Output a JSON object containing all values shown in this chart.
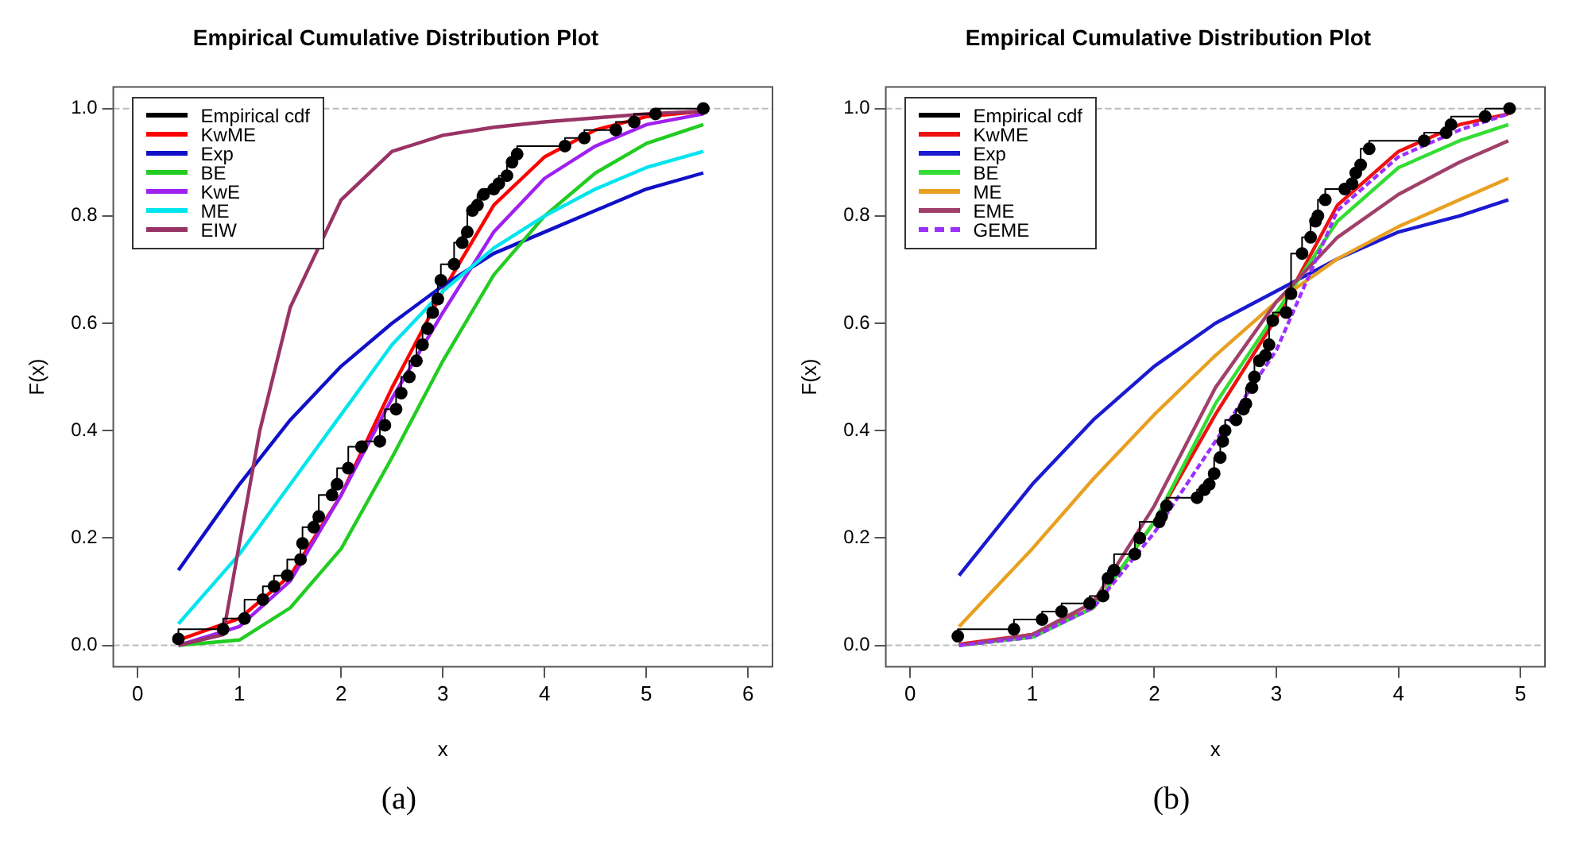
{
  "chart_data": [
    {
      "type": "line",
      "title": "Empirical Cumulative Distribution Plot",
      "xlabel": "x",
      "ylabel": "F(x)",
      "xlim": [
        -0.24,
        6.24
      ],
      "xticks": [
        0,
        1,
        2,
        3,
        4,
        5,
        6
      ],
      "ylim": [
        -0.04,
        1.04
      ],
      "yticks": [
        {
          "value": 0,
          "label": "0.0"
        },
        {
          "value": 0.2,
          "label": "0.2"
        },
        {
          "value": 0.4,
          "label": "0.4"
        },
        {
          "value": 0.6,
          "label": "0.6"
        },
        {
          "value": 0.8,
          "label": "0.8"
        },
        {
          "value": 1,
          "label": "1.0"
        }
      ],
      "grid": false,
      "legend": "top left",
      "marker": "none",
      "annotations": [
        "(a)"
      ],
      "ref_lines": [
        {
          "axis": "y",
          "value": 0,
          "color": "#bbbbbb",
          "line_style": "dashed"
        },
        {
          "axis": "y",
          "value": 1,
          "color": "#bbbbbb",
          "line_style": "dashed"
        }
      ],
      "series": [
        {
          "name": "Empirical cdf",
          "type": "step",
          "marker": "circle",
          "color": "#000000",
          "x": [
            0.4,
            0.84,
            1.05,
            1.23,
            1.34,
            1.47,
            1.6,
            1.62,
            1.73,
            1.78,
            1.91,
            1.96,
            2.07,
            2.2,
            2.38,
            2.43,
            2.54,
            2.59,
            2.67,
            2.74,
            2.8,
            2.85,
            2.9,
            2.95,
            2.98,
            3.11,
            3.19,
            3.24,
            3.29,
            3.34,
            3.4,
            3.5,
            3.55,
            3.63,
            3.68,
            3.73,
            4.2,
            4.39,
            4.7,
            4.88,
            5.09,
            5.56
          ],
          "values": [
            0.012,
            0.03,
            0.05,
            0.085,
            0.11,
            0.13,
            0.16,
            0.19,
            0.22,
            0.24,
            0.28,
            0.3,
            0.33,
            0.37,
            0.38,
            0.41,
            0.44,
            0.47,
            0.5,
            0.53,
            0.56,
            0.59,
            0.62,
            0.645,
            0.68,
            0.71,
            0.75,
            0.77,
            0.81,
            0.82,
            0.84,
            0.85,
            0.86,
            0.875,
            0.9,
            0.915,
            0.93,
            0.945,
            0.96,
            0.975,
            0.99,
            1
          ]
        },
        {
          "name": "KwME",
          "color": "#ff0000",
          "x": [
            0.4,
            1,
            1.5,
            2,
            2.5,
            3,
            3.5,
            4,
            4.5,
            5,
            5.56
          ],
          "values": [
            0.01,
            0.05,
            0.13,
            0.28,
            0.48,
            0.66,
            0.82,
            0.91,
            0.96,
            0.985,
            0.995
          ]
        },
        {
          "name": "Exp",
          "color": "#1010c8",
          "x": [
            0.4,
            1,
            1.5,
            2,
            2.5,
            3,
            3.5,
            4,
            4.5,
            5,
            5.56
          ],
          "values": [
            0.14,
            0.3,
            0.42,
            0.52,
            0.6,
            0.67,
            0.73,
            0.77,
            0.81,
            0.85,
            0.88
          ]
        },
        {
          "name": "BE",
          "color": "#22cc22",
          "x": [
            0.4,
            1,
            1.5,
            2,
            2.5,
            3,
            3.5,
            4,
            4.5,
            5,
            5.56
          ],
          "values": [
            0,
            0.01,
            0.07,
            0.18,
            0.35,
            0.53,
            0.69,
            0.8,
            0.88,
            0.935,
            0.97
          ]
        },
        {
          "name": "KwE",
          "color": "#a020f0",
          "x": [
            0.4,
            1,
            1.5,
            2,
            2.5,
            3,
            3.5,
            4,
            4.5,
            5,
            5.56
          ],
          "values": [
            0,
            0.035,
            0.12,
            0.28,
            0.46,
            0.62,
            0.77,
            0.87,
            0.93,
            0.97,
            0.99
          ]
        },
        {
          "name": "ME",
          "color": "#00e5ee",
          "x": [
            0.4,
            1,
            1.5,
            2,
            2.5,
            3,
            3.5,
            4,
            4.5,
            5,
            5.56
          ],
          "values": [
            0.04,
            0.17,
            0.3,
            0.43,
            0.56,
            0.66,
            0.74,
            0.8,
            0.85,
            0.89,
            0.92
          ]
        },
        {
          "name": "EIW",
          "color": "#993366",
          "x": [
            0.4,
            0.84,
            1,
            1.2,
            1.5,
            2,
            2.5,
            3,
            3.5,
            4,
            5,
            5.56
          ],
          "values": [
            0,
            0.02,
            0.19,
            0.4,
            0.63,
            0.83,
            0.92,
            0.95,
            0.965,
            0.975,
            0.99,
            0.995
          ]
        }
      ]
    },
    {
      "type": "line",
      "title": "Empirical Cumulative Distribution Plot",
      "xlabel": "x",
      "ylabel": "F(x)",
      "xlim": [
        -0.2,
        5.2
      ],
      "xticks": [
        0,
        1,
        2,
        3,
        4,
        5
      ],
      "ylim": [
        -0.04,
        1.04
      ],
      "yticks": [
        {
          "value": 0,
          "label": "0.0"
        },
        {
          "value": 0.2,
          "label": "0.2"
        },
        {
          "value": 0.4,
          "label": "0.4"
        },
        {
          "value": 0.6,
          "label": "0.6"
        },
        {
          "value": 0.8,
          "label": "0.8"
        },
        {
          "value": 1,
          "label": "1.0"
        }
      ],
      "grid": false,
      "legend": "top left",
      "marker": "none",
      "annotations": [
        "(b)"
      ],
      "ref_lines": [
        {
          "axis": "y",
          "value": 0,
          "color": "#bbbbbb",
          "line_style": "dashed"
        },
        {
          "axis": "y",
          "value": 1,
          "color": "#bbbbbb",
          "line_style": "dashed"
        }
      ],
      "series": [
        {
          "name": "Empirical cdf",
          "type": "step",
          "marker": "circle",
          "color": "#000000",
          "x": [
            0.39,
            0.85,
            1.08,
            1.24,
            1.47,
            1.58,
            1.62,
            1.67,
            1.84,
            1.88,
            2.04,
            2.06,
            2.1,
            2.35,
            2.41,
            2.45,
            2.49,
            2.54,
            2.56,
            2.58,
            2.67,
            2.73,
            2.75,
            2.8,
            2.82,
            2.86,
            2.91,
            2.94,
            2.97,
            3.08,
            3.12,
            3.21,
            3.28,
            3.32,
            3.34,
            3.4,
            3.56,
            3.62,
            3.65,
            3.69,
            3.76,
            4.21,
            4.39,
            4.43,
            4.71,
            4.91
          ],
          "values": [
            0.017,
            0.03,
            0.048,
            0.063,
            0.078,
            0.092,
            0.125,
            0.14,
            0.17,
            0.2,
            0.23,
            0.24,
            0.26,
            0.275,
            0.29,
            0.3,
            0.32,
            0.35,
            0.38,
            0.4,
            0.42,
            0.44,
            0.45,
            0.48,
            0.5,
            0.53,
            0.54,
            0.56,
            0.605,
            0.62,
            0.655,
            0.73,
            0.76,
            0.79,
            0.8,
            0.83,
            0.85,
            0.86,
            0.88,
            0.895,
            0.925,
            0.94,
            0.955,
            0.97,
            0.985,
            1
          ]
        },
        {
          "name": "KwME",
          "color": "#ee1111",
          "x": [
            0.4,
            1,
            1.5,
            2,
            2.5,
            3,
            3.5,
            4,
            4.5,
            4.9
          ],
          "values": [
            0.002,
            0.02,
            0.07,
            0.23,
            0.43,
            0.61,
            0.82,
            0.92,
            0.97,
            0.99
          ]
        },
        {
          "name": "Exp",
          "color": "#1a1ad0",
          "x": [
            0.4,
            1,
            1.5,
            2,
            2.5,
            3,
            3.5,
            4,
            4.5,
            4.9
          ],
          "values": [
            0.13,
            0.3,
            0.42,
            0.52,
            0.6,
            0.66,
            0.72,
            0.77,
            0.8,
            0.83
          ]
        },
        {
          "name": "BE",
          "color": "#33dd33",
          "x": [
            0.4,
            1,
            1.5,
            2,
            2.5,
            3,
            3.5,
            4,
            4.5,
            4.9
          ],
          "values": [
            0,
            0.015,
            0.07,
            0.23,
            0.45,
            0.62,
            0.79,
            0.89,
            0.94,
            0.97
          ]
        },
        {
          "name": "ME",
          "color": "#e8a020",
          "x": [
            0.4,
            1,
            1.5,
            2,
            2.5,
            3,
            3.5,
            4,
            4.5,
            4.9
          ],
          "values": [
            0.035,
            0.18,
            0.31,
            0.43,
            0.54,
            0.64,
            0.72,
            0.78,
            0.83,
            0.87
          ]
        },
        {
          "name": "EME",
          "color": "#a0406a",
          "x": [
            0.4,
            1,
            1.5,
            2,
            2.5,
            3,
            3.5,
            4,
            4.5,
            4.9
          ],
          "values": [
            0,
            0.02,
            0.08,
            0.26,
            0.48,
            0.64,
            0.76,
            0.84,
            0.9,
            0.94
          ]
        },
        {
          "name": "GEME",
          "color": "#9b30ff",
          "line_style": "dashed",
          "x": [
            0.4,
            1,
            1.5,
            2,
            2.5,
            3,
            3.25,
            3.5,
            4,
            4.5,
            4.9
          ],
          "values": [
            0,
            0.015,
            0.07,
            0.21,
            0.38,
            0.55,
            0.68,
            0.81,
            0.91,
            0.96,
            0.99
          ]
        }
      ]
    }
  ]
}
